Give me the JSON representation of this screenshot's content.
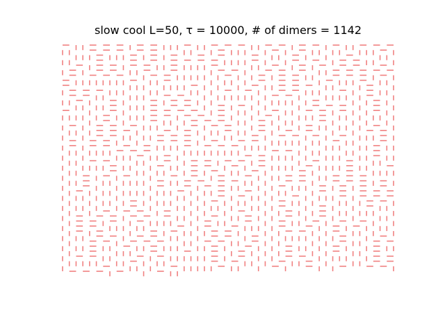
{
  "figure": {
    "title": "slow cool L=50, τ = 10000, # of dimers = 1142"
  },
  "lattice": {
    "size": 50,
    "dimer_count": 1142,
    "dimer_color": "#f08080",
    "axes_visible": false
  }
}
